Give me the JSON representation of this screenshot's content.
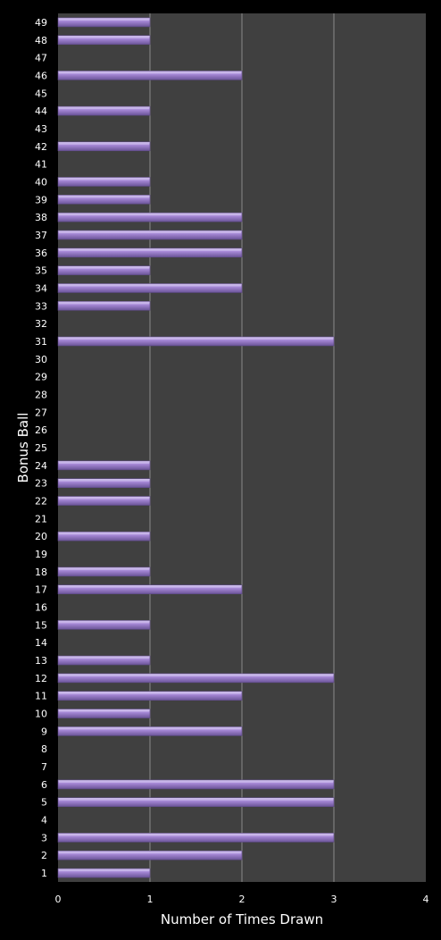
{
  "chart_data": {
    "type": "bar",
    "orientation": "horizontal",
    "xlabel": "Number of Times Drawn",
    "ylabel": "Bonus Ball",
    "xlim": [
      0,
      4
    ],
    "x_ticks": [
      "0",
      "1",
      "2",
      "3",
      "4"
    ],
    "grid": "vertical",
    "colors": {
      "background": "#000000",
      "plot_area": "#404040",
      "bar": "#9b7fcf",
      "bar_highlight": "#c8b6ea",
      "bar_shadow": "#5e4a86",
      "gridline": "#8a8a8a",
      "text": "#ffffff"
    },
    "categories": [
      "1",
      "2",
      "3",
      "4",
      "5",
      "6",
      "7",
      "8",
      "9",
      "10",
      "11",
      "12",
      "13",
      "14",
      "15",
      "16",
      "17",
      "18",
      "19",
      "20",
      "21",
      "22",
      "23",
      "24",
      "25",
      "26",
      "27",
      "28",
      "29",
      "30",
      "31",
      "32",
      "33",
      "34",
      "35",
      "36",
      "37",
      "38",
      "39",
      "40",
      "41",
      "42",
      "43",
      "44",
      "45",
      "46",
      "47",
      "48",
      "49"
    ],
    "values": [
      1,
      2,
      3,
      0,
      3,
      3,
      0,
      0,
      2,
      1,
      2,
      3,
      1,
      0,
      1,
      0,
      2,
      1,
      0,
      1,
      0,
      1,
      1,
      1,
      0,
      0,
      0,
      0,
      0,
      0,
      3,
      0,
      1,
      2,
      1,
      2,
      2,
      2,
      1,
      1,
      0,
      1,
      0,
      1,
      0,
      2,
      0,
      1,
      1
    ]
  }
}
